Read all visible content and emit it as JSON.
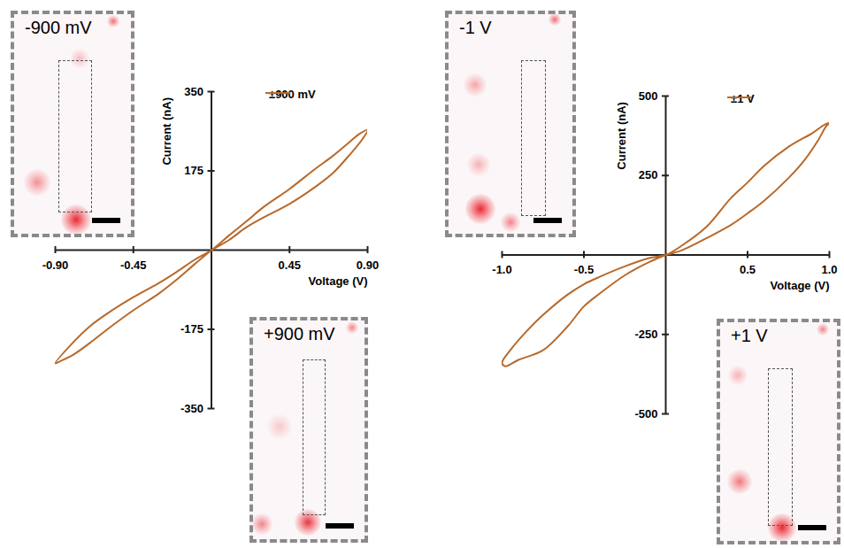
{
  "chart_data": [
    {
      "type": "line",
      "xlabel": "Voltage (V)",
      "ylabel": "Current (nA)",
      "x": [
        0,
        0.1,
        0.2,
        0.3,
        0.45,
        0.6,
        0.7,
        0.8,
        0.87,
        0.9,
        0.85,
        0.8,
        0.7,
        0.6,
        0.45,
        0.3,
        0.2,
        0.1,
        0,
        -0.1,
        -0.2,
        -0.3,
        -0.45,
        -0.6,
        -0.7,
        -0.8,
        -0.9,
        -0.87,
        -0.8,
        -0.7,
        -0.6,
        -0.45,
        -0.3,
        -0.2,
        -0.1,
        0
      ],
      "series": [
        {
          "name": "±900 mV",
          "color": "#b8692a",
          "values": [
            0,
            22,
            50,
            72,
            102,
            140,
            170,
            212,
            245,
            265,
            256,
            240,
            208,
            180,
            135,
            95,
            63,
            32,
            0,
            -22,
            -48,
            -72,
            -104,
            -140,
            -168,
            -205,
            -250,
            -245,
            -232,
            -205,
            -175,
            -133,
            -95,
            -65,
            -32,
            0
          ]
        }
      ],
      "xlim": [
        -0.9,
        0.9
      ],
      "ylim": [
        -350,
        350
      ],
      "xticks": [
        {
          "value": -0.9,
          "label": "-0.90"
        },
        -0.45,
        0.45,
        {
          "value": 0.9,
          "label": "0.90"
        }
      ],
      "yticks": [
        350,
        175,
        -175,
        -350
      ],
      "legend": "top-right",
      "annotations": [
        "-900 mV",
        "+900 mV"
      ]
    },
    {
      "type": "line",
      "xlabel": "Voltage (V)",
      "ylabel": "Current (nA)",
      "x": [
        0,
        0.1,
        0.25,
        0.4,
        0.5,
        0.6,
        0.75,
        0.85,
        0.93,
        0.98,
        1.0,
        0.97,
        0.9,
        0.75,
        0.6,
        0.5,
        0.4,
        0.25,
        0.1,
        0,
        -0.1,
        -0.25,
        -0.4,
        -0.5,
        -0.6,
        -0.75,
        -0.85,
        -0.95,
        -1.0,
        -0.98,
        -0.9,
        -0.75,
        -0.6,
        -0.5,
        -0.4,
        -0.25,
        -0.1,
        0
      ],
      "series": [
        {
          "name": "±1 V",
          "color": "#b8692a",
          "values": [
            0,
            15,
            53,
            95,
            131,
            170,
            242,
            300,
            360,
            405,
            415,
            410,
            385,
            340,
            280,
            228,
            180,
            89,
            30,
            0,
            -10,
            -36,
            -68,
            -92,
            -125,
            -189,
            -240,
            -300,
            -340,
            -350,
            -330,
            -300,
            -225,
            -162,
            -120,
            -64,
            -22,
            0
          ]
        }
      ],
      "xlim": [
        -1.0,
        1.0
      ],
      "ylim": [
        -500,
        500
      ],
      "xticks": [
        {
          "value": -1.0,
          "label": "-1.0"
        },
        -0.5,
        0.5,
        {
          "value": 1.0,
          "label": "1.0"
        }
      ],
      "yticks": [
        500,
        250,
        -250,
        -500
      ],
      "legend": "top-right",
      "annotations": [
        "-1 V",
        "+1 V"
      ]
    }
  ]
}
